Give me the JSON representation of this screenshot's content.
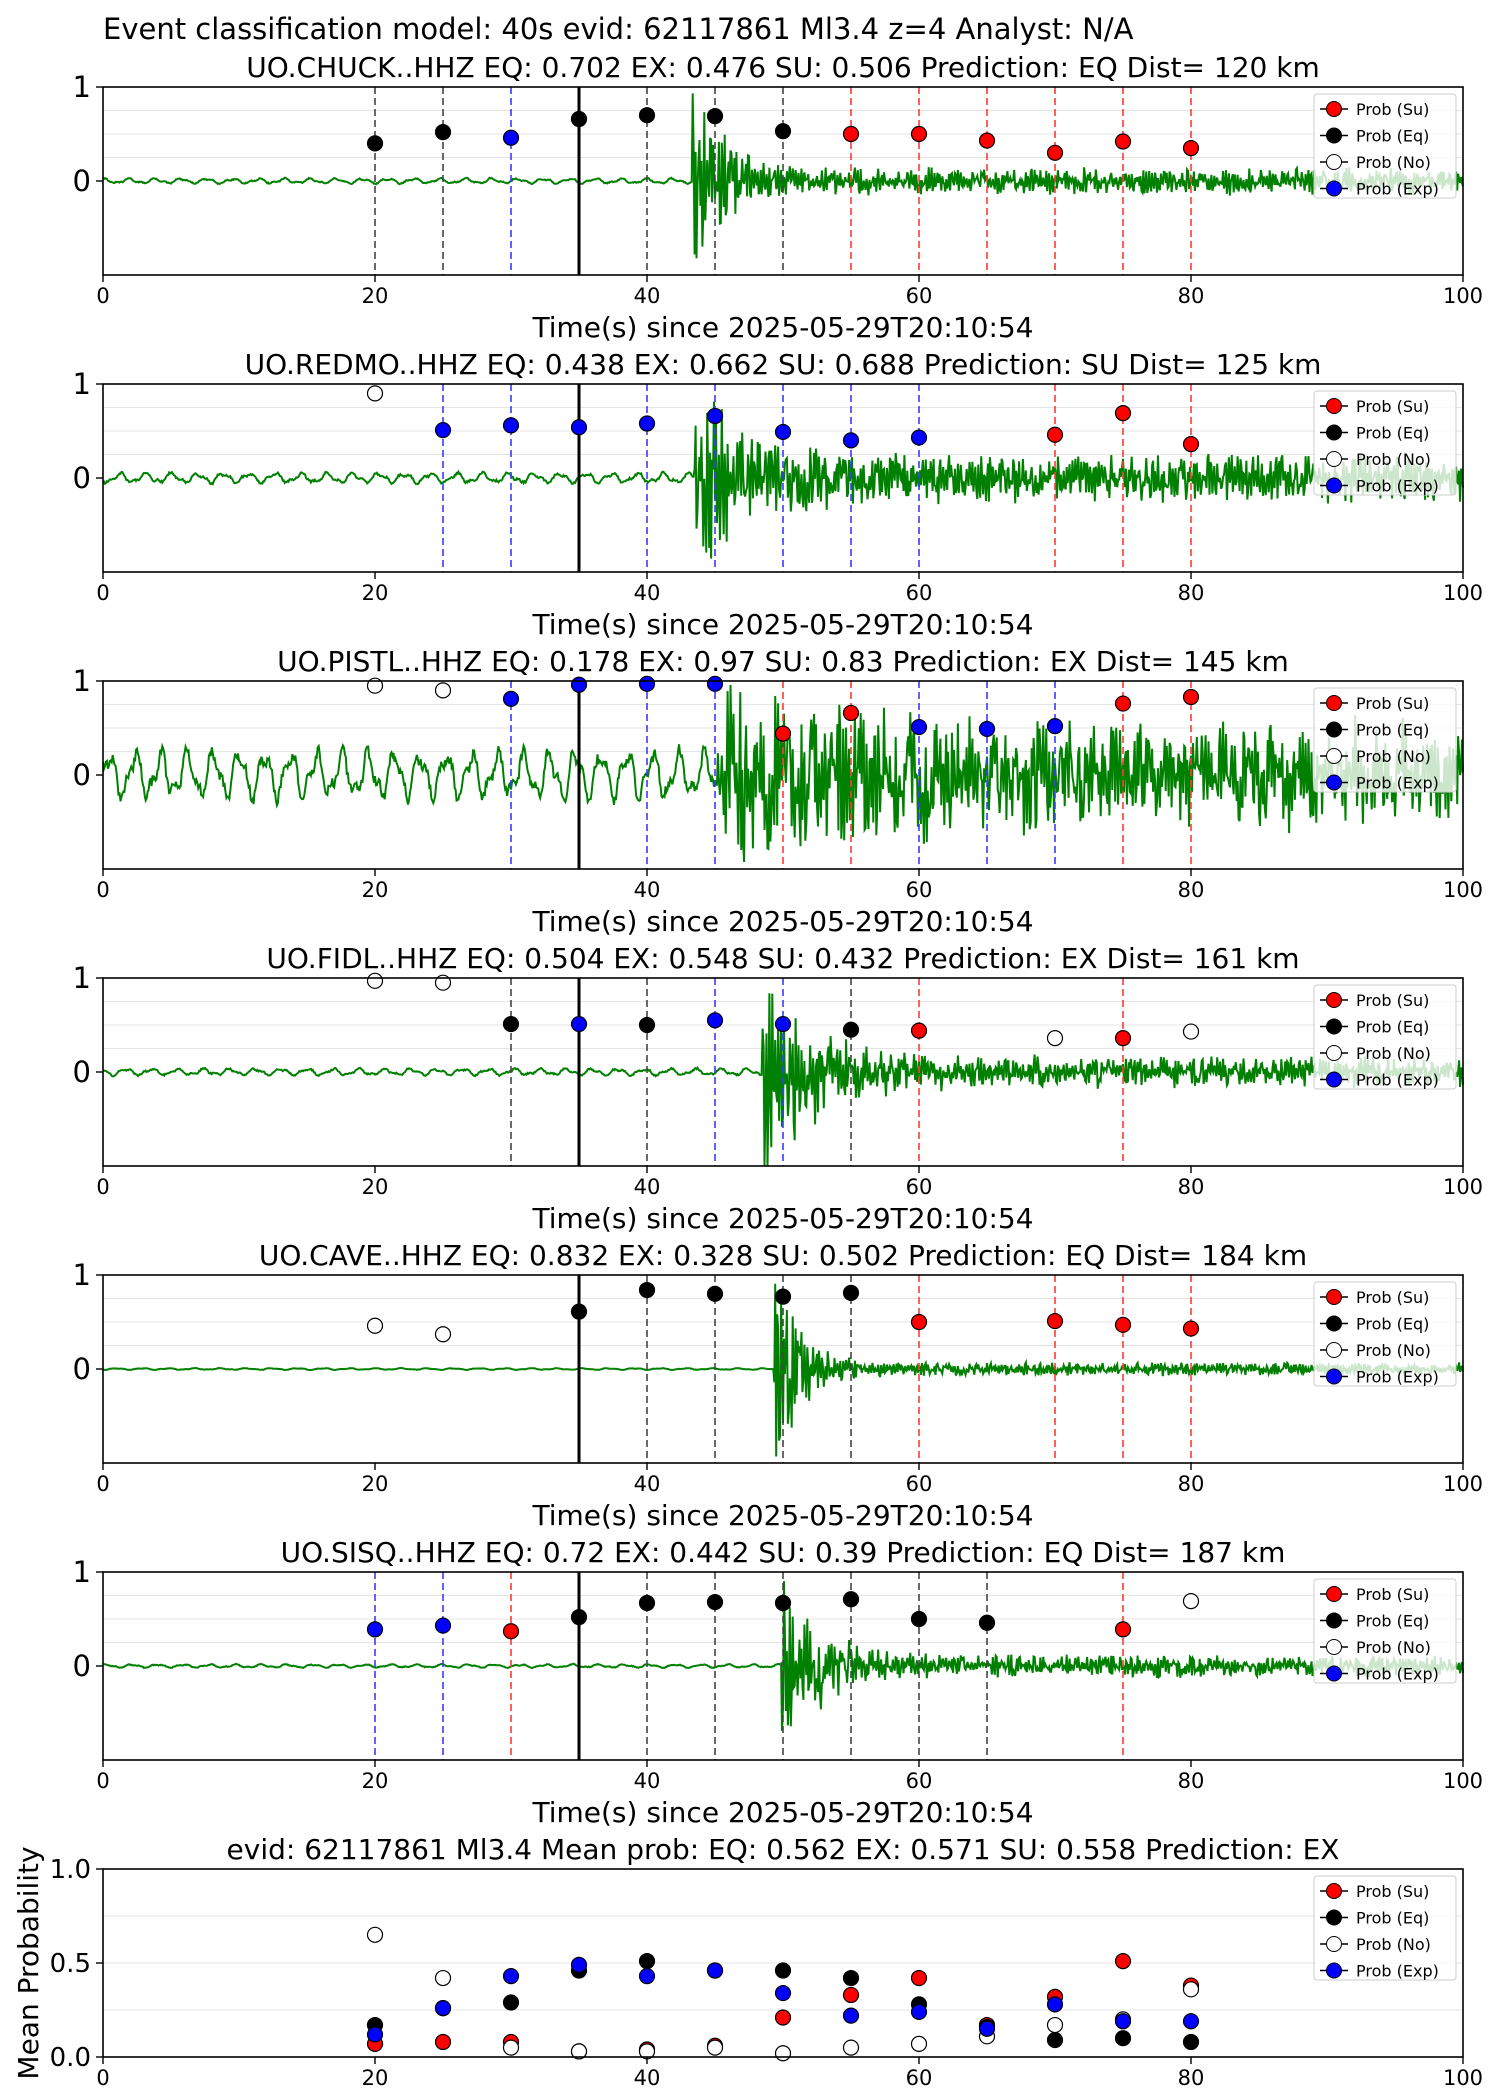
{
  "figure": {
    "suptitle": "Event classification model: 40s evid: 62117861 Ml3.4 z=4 Analyst: N/A"
  },
  "legend": {
    "entries": [
      {
        "label": "Prob (Su)",
        "fill": "#ff0000"
      },
      {
        "label": "Prob (Eq)",
        "fill": "#000000"
      },
      {
        "label": "Prob (No)",
        "fill": "#ffffff"
      },
      {
        "label": "Prob (Exp)",
        "fill": "#0000ff"
      }
    ]
  },
  "colors": {
    "waveform": "#008000",
    "EQ": "#000000",
    "EX": "#0000ff",
    "SU": "#ff0000",
    "NO": "#ffffff",
    "origin_line": "#000000"
  },
  "chart_data": [
    {
      "type": "scatter",
      "title": "UO.CHUCK..HHZ   EQ: 0.702  EX: 0.476  SU: 0.506   Prediction: EQ    Dist= 120 km",
      "xlabel": "Time(s) since 2025-05-29T20:10:54",
      "xlim": [
        0,
        100
      ],
      "ylim": [
        -1,
        1
      ],
      "xticks": [
        "0",
        "20",
        "40",
        "60",
        "80",
        "100"
      ],
      "yticks": [
        "0",
        "1"
      ],
      "origin_time": 35,
      "signal_onset": 43.3,
      "waveform": {
        "pre": 0.03,
        "burst": 1.0,
        "coda": 0.12,
        "decay": 6
      },
      "points": [
        {
          "t": 20,
          "p": 0.4,
          "cls": "EQ"
        },
        {
          "t": 25,
          "p": 0.52,
          "cls": "EQ"
        },
        {
          "t": 30,
          "p": 0.46,
          "cls": "EX"
        },
        {
          "t": 35,
          "p": 0.66,
          "cls": "EQ"
        },
        {
          "t": 40,
          "p": 0.7,
          "cls": "EQ"
        },
        {
          "t": 45,
          "p": 0.69,
          "cls": "EQ"
        },
        {
          "t": 50,
          "p": 0.53,
          "cls": "EQ"
        },
        {
          "t": 55,
          "p": 0.5,
          "cls": "SU"
        },
        {
          "t": 60,
          "p": 0.5,
          "cls": "SU"
        },
        {
          "t": 65,
          "p": 0.43,
          "cls": "SU"
        },
        {
          "t": 70,
          "p": 0.3,
          "cls": "SU"
        },
        {
          "t": 75,
          "p": 0.42,
          "cls": "SU"
        },
        {
          "t": 80,
          "p": 0.35,
          "cls": "SU"
        }
      ]
    },
    {
      "type": "scatter",
      "title": "UO.REDMO..HHZ   EQ: 0.438  EX: 0.662  SU: 0.688   Prediction: SU    Dist= 125 km",
      "xlabel": "Time(s) since 2025-05-29T20:10:54",
      "xlim": [
        0,
        100
      ],
      "ylim": [
        -1,
        1
      ],
      "xticks": [
        "0",
        "20",
        "40",
        "60",
        "80",
        "100"
      ],
      "yticks": [
        "0",
        "1"
      ],
      "origin_time": 35,
      "signal_onset": 43.5,
      "waveform": {
        "pre": 0.06,
        "burst": 0.95,
        "coda": 0.22,
        "decay": 10
      },
      "points": [
        {
          "t": 20,
          "p": 0.9,
          "cls": "NO"
        },
        {
          "t": 25,
          "p": 0.51,
          "cls": "EX"
        },
        {
          "t": 30,
          "p": 0.56,
          "cls": "EX"
        },
        {
          "t": 35,
          "p": 0.54,
          "cls": "EX"
        },
        {
          "t": 40,
          "p": 0.58,
          "cls": "EX"
        },
        {
          "t": 45,
          "p": 0.66,
          "cls": "EX"
        },
        {
          "t": 50,
          "p": 0.49,
          "cls": "EX"
        },
        {
          "t": 55,
          "p": 0.4,
          "cls": "EX"
        },
        {
          "t": 60,
          "p": 0.43,
          "cls": "EX"
        },
        {
          "t": 70,
          "p": 0.46,
          "cls": "SU"
        },
        {
          "t": 75,
          "p": 0.69,
          "cls": "SU"
        },
        {
          "t": 80,
          "p": 0.36,
          "cls": "SU"
        }
      ]
    },
    {
      "type": "scatter",
      "title": "UO.PISTL..HHZ   EQ: 0.178  EX: 0.97  SU: 0.83   Prediction: EX    Dist= 145 km",
      "xlabel": "Time(s) since 2025-05-29T20:10:54",
      "xlim": [
        0,
        100
      ],
      "ylim": [
        -1,
        1
      ],
      "xticks": [
        "0",
        "20",
        "40",
        "60",
        "80",
        "100"
      ],
      "yticks": [
        "0",
        "1"
      ],
      "origin_time": 35,
      "signal_onset": 45.2,
      "waveform": {
        "pre": 0.28,
        "burst": 0.75,
        "coda": 0.42,
        "decay": 30
      },
      "points": [
        {
          "t": 20,
          "p": 0.95,
          "cls": "NO"
        },
        {
          "t": 25,
          "p": 0.9,
          "cls": "NO"
        },
        {
          "t": 30,
          "p": 0.81,
          "cls": "EX"
        },
        {
          "t": 35,
          "p": 0.96,
          "cls": "EX"
        },
        {
          "t": 40,
          "p": 0.97,
          "cls": "EX"
        },
        {
          "t": 45,
          "p": 0.97,
          "cls": "EX"
        },
        {
          "t": 50,
          "p": 0.44,
          "cls": "SU"
        },
        {
          "t": 55,
          "p": 0.66,
          "cls": "SU"
        },
        {
          "t": 60,
          "p": 0.51,
          "cls": "EX"
        },
        {
          "t": 65,
          "p": 0.49,
          "cls": "EX"
        },
        {
          "t": 70,
          "p": 0.52,
          "cls": "EX"
        },
        {
          "t": 75,
          "p": 0.76,
          "cls": "SU"
        },
        {
          "t": 80,
          "p": 0.83,
          "cls": "SU"
        }
      ]
    },
    {
      "type": "scatter",
      "title": "UO.FIDL..HHZ   EQ: 0.504  EX: 0.548  SU: 0.432   Prediction: EX    Dist= 161 km",
      "xlabel": "Time(s) since 2025-05-29T20:10:54",
      "xlim": [
        0,
        100
      ],
      "ylim": [
        -1,
        1
      ],
      "xticks": [
        "0",
        "20",
        "40",
        "60",
        "80",
        "100"
      ],
      "yticks": [
        "0",
        "1"
      ],
      "origin_time": 35,
      "signal_onset": 48.5,
      "waveform": {
        "pre": 0.04,
        "burst": 1.0,
        "coda": 0.14,
        "decay": 10
      },
      "points": [
        {
          "t": 20,
          "p": 0.97,
          "cls": "NO"
        },
        {
          "t": 25,
          "p": 0.95,
          "cls": "NO"
        },
        {
          "t": 30,
          "p": 0.51,
          "cls": "EQ"
        },
        {
          "t": 35,
          "p": 0.51,
          "cls": "EX"
        },
        {
          "t": 40,
          "p": 0.5,
          "cls": "EQ"
        },
        {
          "t": 45,
          "p": 0.55,
          "cls": "EX"
        },
        {
          "t": 50,
          "p": 0.51,
          "cls": "EX"
        },
        {
          "t": 55,
          "p": 0.45,
          "cls": "EQ"
        },
        {
          "t": 60,
          "p": 0.44,
          "cls": "SU"
        },
        {
          "t": 70,
          "p": 0.36,
          "cls": "NO"
        },
        {
          "t": 75,
          "p": 0.36,
          "cls": "SU"
        },
        {
          "t": 80,
          "p": 0.43,
          "cls": "NO"
        }
      ]
    },
    {
      "type": "scatter",
      "title": "UO.CAVE..HHZ   EQ: 0.832  EX: 0.328  SU: 0.502   Prediction: EQ    Dist= 184 km",
      "xlabel": "Time(s) since 2025-05-29T20:10:54",
      "xlim": [
        0,
        100
      ],
      "ylim": [
        -1,
        1
      ],
      "xticks": [
        "0",
        "20",
        "40",
        "60",
        "80",
        "100"
      ],
      "yticks": [
        "0",
        "1"
      ],
      "origin_time": 35,
      "signal_onset": 49.3,
      "waveform": {
        "pre": 0.01,
        "burst": 1.0,
        "coda": 0.06,
        "decay": 5
      },
      "points": [
        {
          "t": 20,
          "p": 0.46,
          "cls": "NO"
        },
        {
          "t": 25,
          "p": 0.37,
          "cls": "NO"
        },
        {
          "t": 35,
          "p": 0.61,
          "cls": "EQ"
        },
        {
          "t": 40,
          "p": 0.84,
          "cls": "EQ"
        },
        {
          "t": 45,
          "p": 0.8,
          "cls": "EQ"
        },
        {
          "t": 50,
          "p": 0.77,
          "cls": "EQ"
        },
        {
          "t": 55,
          "p": 0.81,
          "cls": "EQ"
        },
        {
          "t": 60,
          "p": 0.5,
          "cls": "SU"
        },
        {
          "t": 70,
          "p": 0.51,
          "cls": "SU"
        },
        {
          "t": 75,
          "p": 0.47,
          "cls": "SU"
        },
        {
          "t": 80,
          "p": 0.43,
          "cls": "SU"
        }
      ]
    },
    {
      "type": "scatter",
      "title": "UO.SISQ..HHZ   EQ: 0.72  EX: 0.442  SU: 0.39   Prediction: EQ    Dist= 187 km",
      "xlabel": "Time(s) since 2025-05-29T20:10:54",
      "xlim": [
        0,
        100
      ],
      "ylim": [
        -1,
        1
      ],
      "xticks": [
        "0",
        "20",
        "40",
        "60",
        "80",
        "100"
      ],
      "yticks": [
        "0",
        "1"
      ],
      "origin_time": 35,
      "signal_onset": 49.8,
      "waveform": {
        "pre": 0.02,
        "burst": 0.8,
        "coda": 0.1,
        "decay": 8
      },
      "points": [
        {
          "t": 20,
          "p": 0.39,
          "cls": "EX"
        },
        {
          "t": 25,
          "p": 0.43,
          "cls": "EX"
        },
        {
          "t": 30,
          "p": 0.37,
          "cls": "SU"
        },
        {
          "t": 35,
          "p": 0.52,
          "cls": "EQ"
        },
        {
          "t": 40,
          "p": 0.67,
          "cls": "EQ"
        },
        {
          "t": 45,
          "p": 0.68,
          "cls": "EQ"
        },
        {
          "t": 50,
          "p": 0.67,
          "cls": "EQ"
        },
        {
          "t": 55,
          "p": 0.71,
          "cls": "EQ"
        },
        {
          "t": 60,
          "p": 0.5,
          "cls": "EQ"
        },
        {
          "t": 65,
          "p": 0.46,
          "cls": "EQ"
        },
        {
          "t": 75,
          "p": 0.39,
          "cls": "SU"
        },
        {
          "t": 80,
          "p": 0.69,
          "cls": "NO"
        }
      ]
    },
    {
      "type": "scatter",
      "title": "evid: 62117861  Ml3.4   Mean prob:   EQ: 0.562  EX: 0.571  SU: 0.558   Prediction: EX",
      "ylabel": "Mean Probability",
      "xlim": [
        0,
        100
      ],
      "ylim": [
        0,
        1.0
      ],
      "xticks": [
        "0",
        "20",
        "40",
        "60",
        "80",
        "100"
      ],
      "yticks": [
        "0.0",
        "0.5",
        "1.0"
      ],
      "x": [
        20,
        25,
        30,
        35,
        40,
        45,
        50,
        55,
        60,
        65,
        70,
        75,
        80
      ],
      "series": [
        {
          "cls": "SU",
          "values": [
            0.07,
            0.08,
            0.08,
            0.03,
            0.04,
            0.06,
            0.21,
            0.33,
            0.42,
            0.17,
            0.32,
            0.51,
            0.38
          ]
        },
        {
          "cls": "EQ",
          "values": [
            0.17,
            0.26,
            0.29,
            0.46,
            0.51,
            0.46,
            0.46,
            0.42,
            0.28,
            0.16,
            0.09,
            0.1,
            0.08
          ]
        },
        {
          "cls": "NO",
          "values": [
            0.65,
            0.42,
            0.05,
            0.03,
            0.03,
            0.05,
            0.02,
            0.05,
            0.07,
            0.11,
            0.17,
            0.2,
            0.36
          ]
        },
        {
          "cls": "EX",
          "values": [
            0.12,
            0.26,
            0.43,
            0.49,
            0.43,
            0.46,
            0.34,
            0.22,
            0.24,
            0.15,
            0.28,
            0.19,
            0.19
          ]
        }
      ]
    }
  ]
}
